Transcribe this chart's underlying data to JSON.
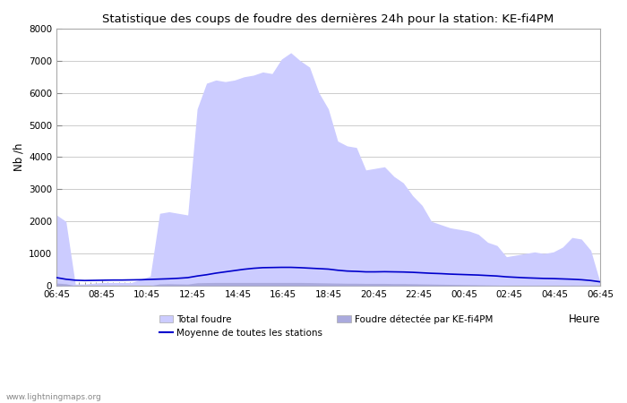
{
  "title": "Statistique des coups de foudre des dernières 24h pour la station: KE-fi4PM",
  "xlabel": "Heure",
  "ylabel": "Nb /h",
  "ylim": [
    0,
    8000
  ],
  "yticks": [
    0,
    1000,
    2000,
    3000,
    4000,
    5000,
    6000,
    7000,
    8000
  ],
  "x_labels": [
    "06:45",
    "08:45",
    "10:45",
    "12:45",
    "14:45",
    "16:45",
    "18:45",
    "20:45",
    "22:45",
    "00:45",
    "02:45",
    "04:45",
    "06:45"
  ],
  "total_foudre_color": "#ccccff",
  "detected_color": "#aaaadd",
  "mean_line_color": "#0000cc",
  "background_color": "#ffffff",
  "grid_color": "#cccccc",
  "watermark": "www.lightningmaps.org",
  "total_foudre": [
    2200,
    2000,
    50,
    50,
    80,
    100,
    100,
    100,
    100,
    200,
    300,
    2250,
    2300,
    2250,
    2200,
    5500,
    6300,
    6400,
    6350,
    6400,
    6500,
    6550,
    6650,
    6600,
    7050,
    7250,
    7000,
    6800,
    6000,
    5500,
    4500,
    4350,
    4300,
    3600,
    3650,
    3700,
    3400,
    3200,
    2800,
    2500,
    2000,
    1900,
    1800,
    1750,
    1700,
    1600,
    1350,
    1250,
    900,
    950,
    1000,
    1050,
    1000,
    1050,
    1200,
    1500,
    1450,
    1100,
    100
  ],
  "mean_line": [
    250,
    200,
    170,
    160,
    165,
    170,
    175,
    175,
    180,
    185,
    195,
    205,
    215,
    230,
    250,
    300,
    340,
    390,
    430,
    470,
    510,
    540,
    560,
    565,
    570,
    570,
    560,
    545,
    530,
    515,
    480,
    455,
    445,
    430,
    430,
    435,
    430,
    425,
    415,
    400,
    385,
    375,
    360,
    350,
    340,
    330,
    315,
    300,
    275,
    260,
    245,
    235,
    225,
    220,
    210,
    200,
    185,
    160,
    120
  ],
  "detected_foudre": [
    80,
    60,
    0,
    0,
    0,
    0,
    0,
    0,
    0,
    0,
    0,
    55,
    60,
    55,
    50,
    90,
    95,
    100,
    100,
    100,
    100,
    100,
    100,
    100,
    100,
    100,
    100,
    95,
    90,
    85,
    80,
    75,
    75,
    70,
    70,
    70,
    65,
    65,
    60,
    55,
    50,
    45,
    40,
    35,
    30,
    25,
    20,
    15,
    10,
    8,
    10,
    12,
    10,
    8,
    10,
    15,
    12,
    10,
    0
  ],
  "n_points": 59
}
